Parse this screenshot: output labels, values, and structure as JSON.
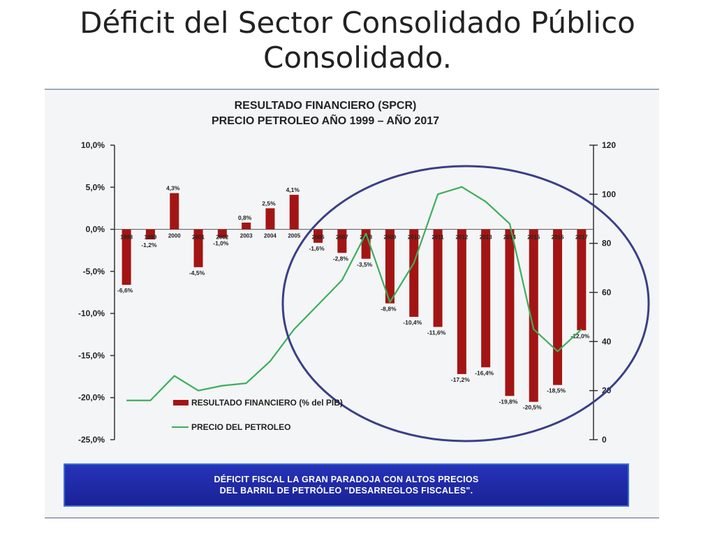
{
  "slide": {
    "title_line1": "Déficit del Sector Consolidado Público",
    "title_line2": "Consolidado."
  },
  "banner": {
    "line1": "DÉFICIT FISCAL LA GRAN PARADOJA CON ALTOS PRECIOS",
    "line2": "DEL BARRIL DE PETRÓLEO \"DESARREGLOS FISCALES\"."
  },
  "chart_data": {
    "type": "bar",
    "title": "RESULTADO FINANCIERO  (SPCR)",
    "subtitle": "PRECIO PETROLEO AÑO 1999 – AÑO 2017",
    "categories": [
      "1998",
      "1999",
      "2000",
      "2001",
      "2002",
      "2003",
      "2004",
      "2005",
      "2006",
      "2007",
      "2008",
      "2009",
      "2010",
      "2011",
      "2012",
      "2013",
      "2014",
      "2015",
      "2016",
      "2017"
    ],
    "series": [
      {
        "name": "RESULTADO FINANCIERO (% del PIB)",
        "type": "bar",
        "axis": "left",
        "color": "#a31515",
        "values": [
          -6.6,
          -1.2,
          4.3,
          -4.5,
          -1.0,
          0.8,
          2.5,
          4.1,
          -1.6,
          -2.8,
          -3.5,
          -8.8,
          -10.4,
          -11.6,
          -17.2,
          -16.4,
          -19.8,
          -20.5,
          -18.5,
          -12.0
        ],
        "labels": [
          "-6,6%",
          "-1,2%",
          "4,3%",
          "-4,5%",
          "-1,0%",
          "0,8%",
          "2,5%",
          "4,1%",
          "-1,6%",
          "-2,8%",
          "-3,5%",
          "-8,8%",
          "-10,4%",
          "-11,6%",
          "-17,2%",
          "-16,4%",
          "-19,8%",
          "-20,5%",
          "-18,5%",
          "-12,0%"
        ]
      },
      {
        "name": "PRECIO DEL PETROLEO",
        "type": "line",
        "axis": "right",
        "color": "#3cae5a",
        "values": [
          16,
          16,
          26,
          20,
          22,
          23,
          32,
          45,
          55,
          65,
          84,
          56,
          72,
          100,
          103,
          97,
          88,
          45,
          36,
          45
        ]
      }
    ],
    "y_left": {
      "ylim": [
        -25,
        10
      ],
      "ticks": [
        10,
        5,
        0,
        -5,
        -10,
        -15,
        -20,
        -25
      ],
      "tick_labels": [
        "10,0%",
        "5,0%",
        "0,0%",
        "-5,0%",
        "-10,0%",
        "-15,0%",
        "-20,0%",
        "-25,0%"
      ]
    },
    "y_right": {
      "ylim": [
        0,
        120
      ],
      "ticks": [
        120,
        100,
        80,
        60,
        40,
        20,
        0
      ],
      "tick_labels": [
        "120",
        "100",
        "80",
        "60",
        "40",
        "20",
        "0"
      ]
    },
    "legend_position": "bottom-left",
    "annotation": "ellipse highlighting 2008–2017",
    "grid": false
  }
}
